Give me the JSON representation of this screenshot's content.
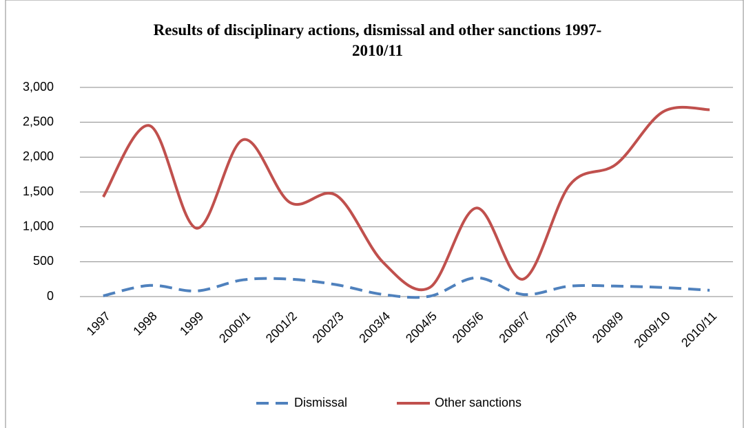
{
  "chart_data": {
    "type": "line",
    "title": "Results of disciplinary actions, dismissal and other sanctions 1997-2010/11",
    "categories": [
      "1997",
      "1998",
      "1999",
      "2000/1",
      "2001/2",
      "2002/3",
      "2003/4",
      "2004/5",
      "2005/6",
      "2006/7",
      "2007/8",
      "2008/9",
      "2009/10",
      "2010/11"
    ],
    "series": [
      {
        "name": "Dismissal",
        "color": "#4f81bd",
        "dashed": true,
        "values": [
          10,
          160,
          80,
          240,
          250,
          170,
          30,
          5,
          270,
          30,
          150,
          150,
          130,
          90
        ]
      },
      {
        "name": "Other sanctions",
        "color": "#c0504d",
        "dashed": false,
        "values": [
          1430,
          2450,
          980,
          2250,
          1350,
          1450,
          490,
          130,
          1270,
          250,
          1600,
          1900,
          2650,
          2680
        ]
      }
    ],
    "ylim": [
      0,
      3000
    ],
    "yticks": [
      0,
      500,
      {
        "value": 1000,
        "label": "1,000"
      },
      {
        "value": 1500,
        "label": "1,500"
      },
      {
        "value": 2000,
        "label": "2,000"
      },
      {
        "value": 2500,
        "label": "2,500"
      },
      {
        "value": 3000,
        "label": "3,000"
      }
    ],
    "grid": true,
    "smooth": true,
    "legend": "bottom"
  }
}
